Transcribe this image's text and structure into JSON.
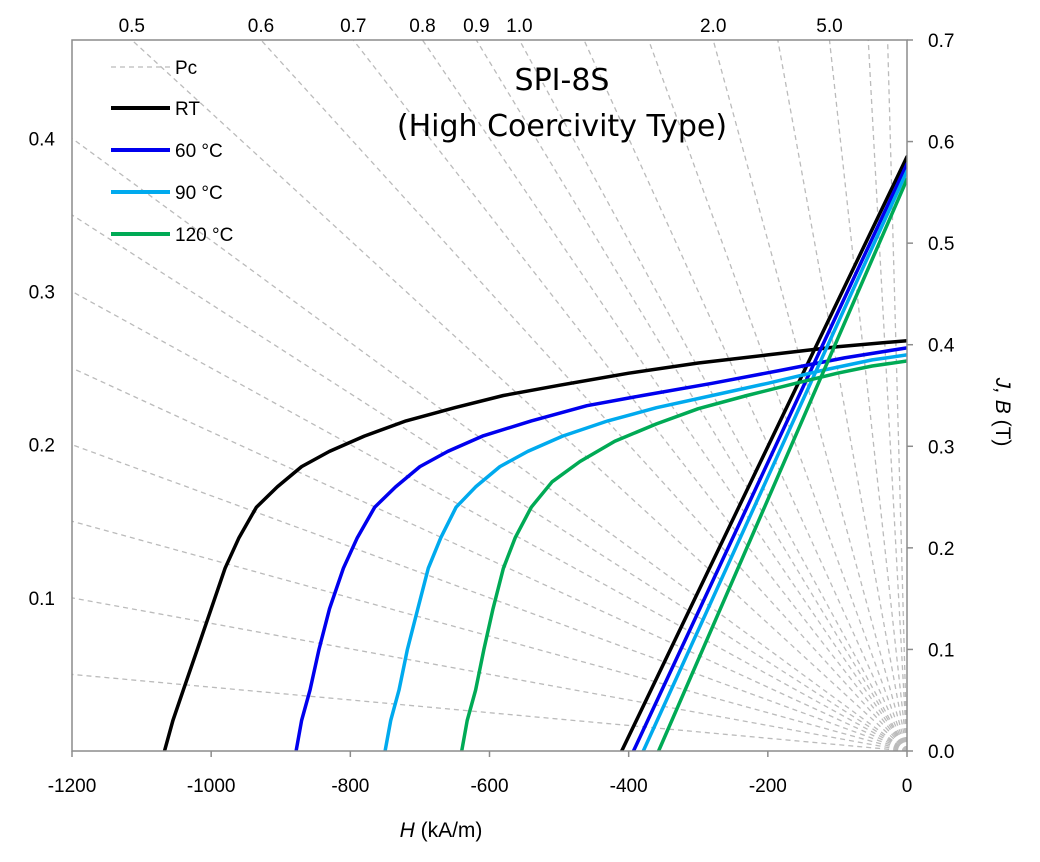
{
  "chart_data": {
    "type": "line",
    "title_lines": [
      "SPI-8S",
      "(High Coercivity Type)"
    ],
    "xlabel_italic": "H",
    "xlabel_unit": " (kA/m)",
    "ylabel_italic": "J, B",
    "ylabel_unit": " (T)",
    "xlim": [
      -1200,
      0
    ],
    "ylim": [
      0,
      0.7
    ],
    "x_ticks": [
      -1200,
      -1000,
      -800,
      -600,
      -400,
      -200,
      0
    ],
    "y_ticks_right": [
      "0.0",
      "0.1",
      "0.2",
      "0.3",
      "0.4",
      "0.5",
      "0.6",
      "0.7"
    ],
    "grid": false,
    "legend_position": "top-left",
    "permeance_label": "Pc",
    "permeance_color": "#bbbbbb",
    "pc_lines": {
      "labelled_left": [
        {
          "label": "0.1",
          "pc": 0.1
        },
        {
          "label": "0.2",
          "pc": 0.2
        },
        {
          "label": "0.3",
          "pc": 0.3
        },
        {
          "label": "0.4",
          "pc": 0.4
        }
      ],
      "labelled_top": [
        {
          "label": "0.5",
          "pc": 0.5
        },
        {
          "label": "0.6",
          "pc": 0.6
        },
        {
          "label": "0.7",
          "pc": 0.7
        },
        {
          "label": "0.8",
          "pc": 0.8
        },
        {
          "label": "0.9",
          "pc": 0.9
        },
        {
          "label": "1.0",
          "pc": 1.0
        },
        {
          "label": "2.0",
          "pc": 2.0
        },
        {
          "label": "5.0",
          "pc": 5.0
        }
      ],
      "unlabelled": [
        0.05,
        0.15,
        0.25,
        0.35,
        1.2,
        1.5,
        3.0,
        10.0,
        20.0
      ]
    },
    "series": [
      {
        "name": "RT",
        "color": "#000000",
        "J": [
          [
            -1067,
            0
          ],
          [
            -1055,
            0.03
          ],
          [
            -1040,
            0.06
          ],
          [
            -1020,
            0.1
          ],
          [
            -1000,
            0.14
          ],
          [
            -980,
            0.18
          ],
          [
            -960,
            0.21
          ],
          [
            -935,
            0.24
          ],
          [
            -905,
            0.26
          ],
          [
            -870,
            0.28
          ],
          [
            -830,
            0.295
          ],
          [
            -780,
            0.31
          ],
          [
            -720,
            0.325
          ],
          [
            -650,
            0.338
          ],
          [
            -580,
            0.35
          ],
          [
            -500,
            0.36
          ],
          [
            -400,
            0.372
          ],
          [
            -300,
            0.382
          ],
          [
            -200,
            0.39
          ],
          [
            -100,
            0.398
          ],
          [
            0,
            0.404
          ]
        ],
        "B": [
          [
            -410,
            0
          ],
          [
            0,
            0.585
          ]
        ]
      },
      {
        "name": "60 °C",
        "color": "#0000ee",
        "J": [
          [
            -878,
            0
          ],
          [
            -870,
            0.03
          ],
          [
            -858,
            0.06
          ],
          [
            -845,
            0.1
          ],
          [
            -830,
            0.14
          ],
          [
            -810,
            0.18
          ],
          [
            -790,
            0.21
          ],
          [
            -765,
            0.24
          ],
          [
            -735,
            0.26
          ],
          [
            -700,
            0.28
          ],
          [
            -660,
            0.295
          ],
          [
            -610,
            0.31
          ],
          [
            -540,
            0.325
          ],
          [
            -460,
            0.34
          ],
          [
            -380,
            0.35
          ],
          [
            -280,
            0.362
          ],
          [
            -180,
            0.375
          ],
          [
            -90,
            0.387
          ],
          [
            0,
            0.397
          ]
        ],
        "B": [
          [
            -393,
            0
          ],
          [
            0,
            0.578
          ]
        ]
      },
      {
        "name": "90 °C",
        "color": "#00aaee",
        "J": [
          [
            -750,
            0
          ],
          [
            -742,
            0.03
          ],
          [
            -730,
            0.06
          ],
          [
            -718,
            0.1
          ],
          [
            -703,
            0.14
          ],
          [
            -688,
            0.18
          ],
          [
            -670,
            0.21
          ],
          [
            -648,
            0.24
          ],
          [
            -620,
            0.26
          ],
          [
            -585,
            0.28
          ],
          [
            -545,
            0.295
          ],
          [
            -495,
            0.31
          ],
          [
            -430,
            0.325
          ],
          [
            -360,
            0.338
          ],
          [
            -280,
            0.35
          ],
          [
            -200,
            0.362
          ],
          [
            -120,
            0.375
          ],
          [
            -50,
            0.385
          ],
          [
            0,
            0.39
          ]
        ],
        "B": [
          [
            -379,
            0
          ],
          [
            0,
            0.571
          ]
        ]
      },
      {
        "name": "120 °C",
        "color": "#00aa55",
        "J": [
          [
            -640,
            0
          ],
          [
            -632,
            0.03
          ],
          [
            -620,
            0.06
          ],
          [
            -608,
            0.1
          ],
          [
            -595,
            0.14
          ],
          [
            -580,
            0.18
          ],
          [
            -563,
            0.21
          ],
          [
            -540,
            0.24
          ],
          [
            -510,
            0.265
          ],
          [
            -470,
            0.285
          ],
          [
            -420,
            0.305
          ],
          [
            -360,
            0.322
          ],
          [
            -300,
            0.337
          ],
          [
            -230,
            0.35
          ],
          [
            -160,
            0.362
          ],
          [
            -100,
            0.372
          ],
          [
            -50,
            0.379
          ],
          [
            0,
            0.384
          ]
        ],
        "B": [
          [
            -357,
            0
          ],
          [
            0,
            0.563
          ]
        ]
      }
    ]
  }
}
